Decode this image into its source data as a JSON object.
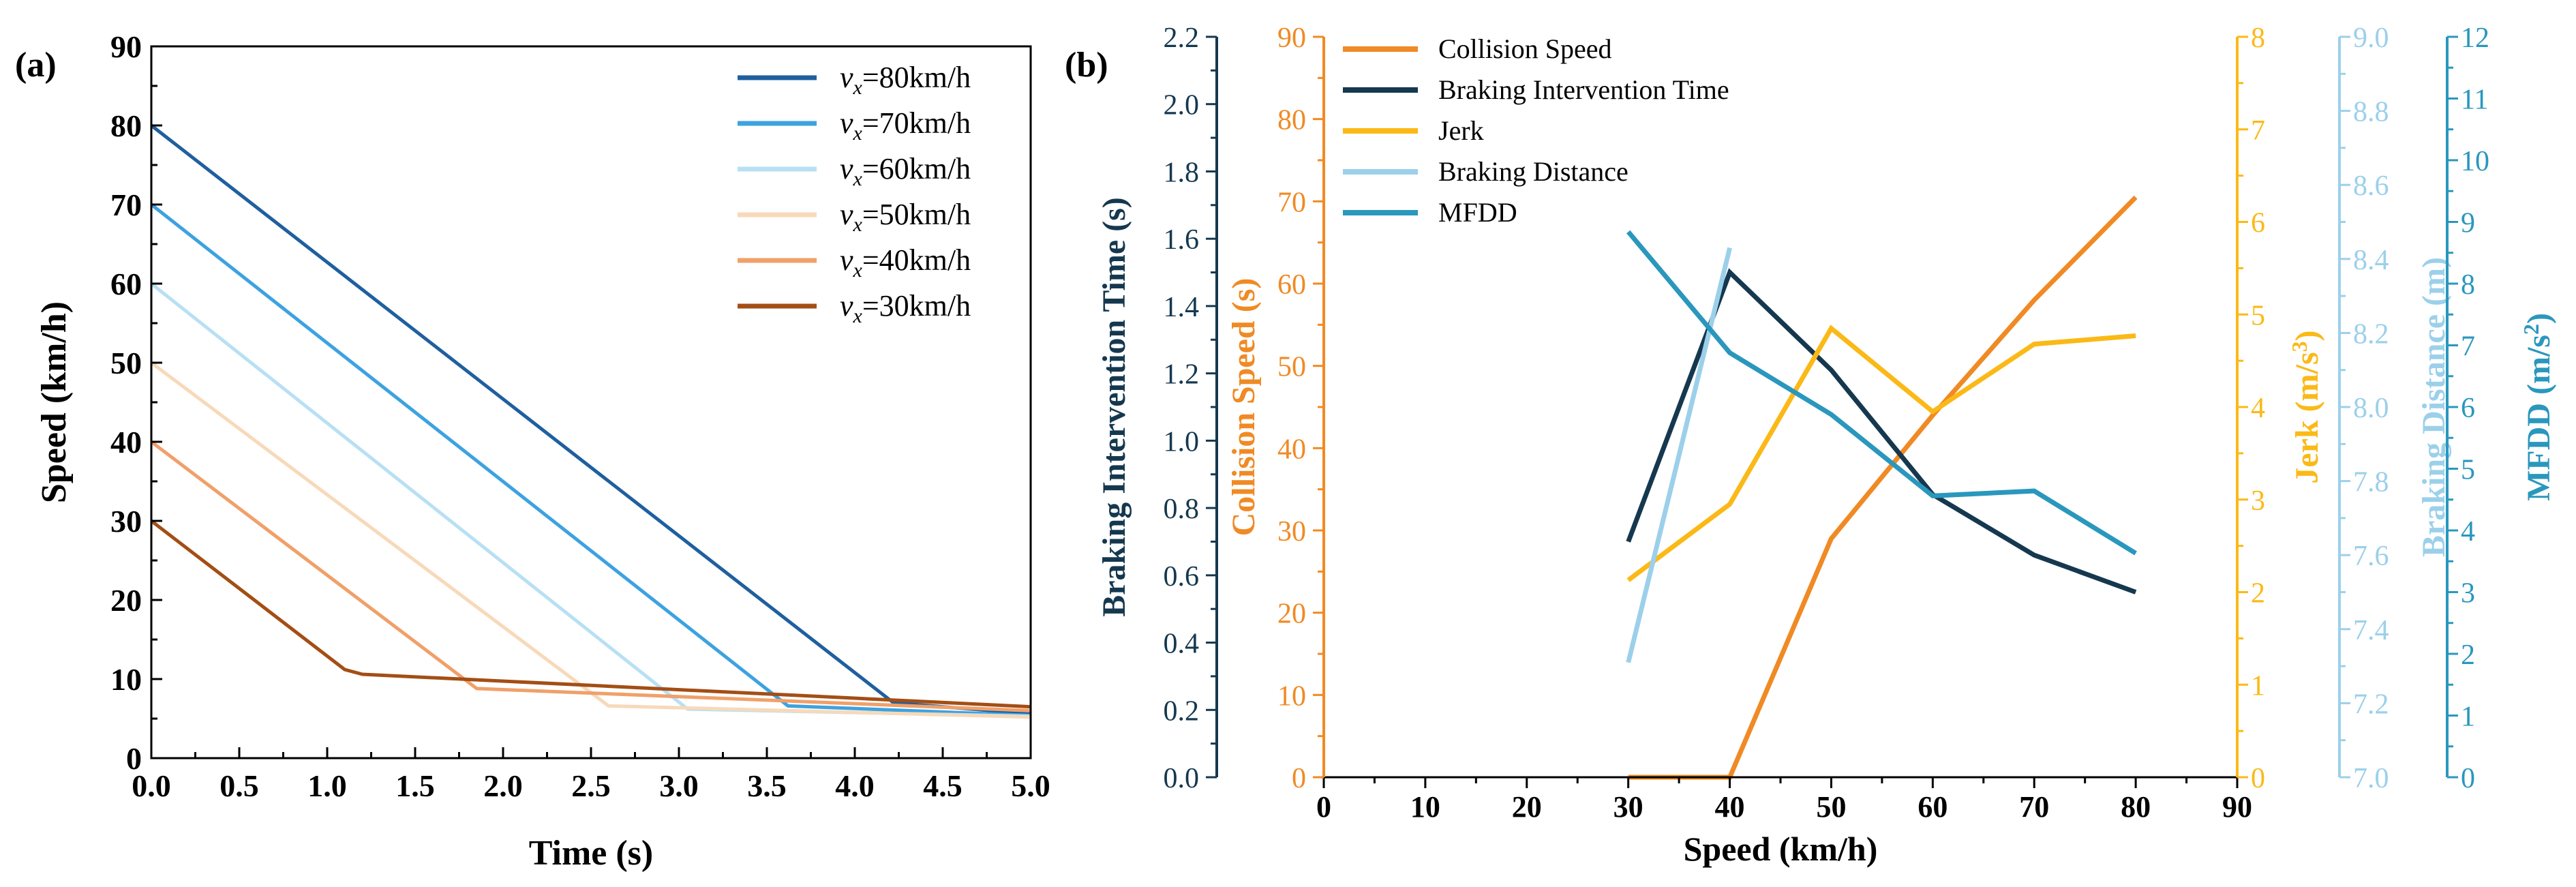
{
  "panel_a_label": "(a)",
  "panel_b_label": "(b)",
  "chart_data": [
    {
      "type": "line",
      "panel": "(a)",
      "title": "",
      "xlabel": "Time (s)",
      "ylabel": "Speed (km/h)",
      "xlim": [
        0,
        5
      ],
      "ylim": [
        0,
        90
      ],
      "xticks": [
        "0.0",
        "0.5",
        "1.0",
        "1.5",
        "2.0",
        "2.5",
        "3.0",
        "3.5",
        "4.0",
        "4.5",
        "5.0"
      ],
      "yticks": [
        "0",
        "10",
        "20",
        "30",
        "40",
        "50",
        "60",
        "70",
        "80",
        "90"
      ],
      "grid": false,
      "legend_position": "top-right",
      "series": [
        {
          "name": "v_x=80km/h",
          "var": "v",
          "sub": "x",
          "value": "=80km/h",
          "color": "#1f5f9e",
          "points": [
            [
              0,
              80
            ],
            [
              4.22,
              7.0
            ],
            [
              5.0,
              5.6
            ]
          ]
        },
        {
          "name": "v_x=70km/h",
          "var": "v",
          "sub": "x",
          "value": "=70km/h",
          "color": "#3da2e0",
          "points": [
            [
              0,
              70
            ],
            [
              3.62,
              6.6
            ],
            [
              5.0,
              5.4
            ]
          ]
        },
        {
          "name": "v_x=60km/h",
          "var": "v",
          "sub": "x",
          "value": "=60km/h",
          "color": "#b8e0f4",
          "points": [
            [
              0,
              60
            ],
            [
              3.05,
              6.2
            ],
            [
              5.0,
              5.3
            ]
          ]
        },
        {
          "name": "v_x=50km/h",
          "var": "v",
          "sub": "x",
          "value": "=50km/h",
          "color": "#f7d9b9",
          "points": [
            [
              0,
              50
            ],
            [
              2.6,
              6.6
            ],
            [
              5.0,
              5.2
            ]
          ]
        },
        {
          "name": "v_x=40km/h",
          "var": "v",
          "sub": "x",
          "value": "=40km/h",
          "color": "#f0a06a",
          "points": [
            [
              0,
              40
            ],
            [
              1.85,
              8.8
            ],
            [
              5.0,
              6.0
            ]
          ]
        },
        {
          "name": "v_x=30km/h",
          "var": "v",
          "sub": "x",
          "value": "=30km/h",
          "color": "#a34e15",
          "points": [
            [
              0,
              30
            ],
            [
              1.1,
              11.2
            ],
            [
              1.2,
              10.6
            ],
            [
              5.0,
              6.5
            ]
          ]
        }
      ]
    },
    {
      "type": "line",
      "panel": "(b)",
      "title": "",
      "xlabel": "Speed (km/h)",
      "xlim": [
        0,
        90
      ],
      "xticks": [
        "0",
        "10",
        "20",
        "30",
        "40",
        "50",
        "60",
        "70",
        "80",
        "90"
      ],
      "grid": false,
      "legend_position": "top-left",
      "axes": {
        "braking_time": {
          "label": "Braking Intervention Time (s)",
          "color": "#15384f",
          "ylim": [
            0,
            2.2
          ],
          "ticks": [
            "0.0",
            "0.2",
            "0.4",
            "0.6",
            "0.8",
            "1.0",
            "1.2",
            "1.4",
            "1.6",
            "1.8",
            "2.0",
            "2.2"
          ]
        },
        "collision": {
          "label": "Collision Speed (s)",
          "color": "#f08a24",
          "ylim": [
            0,
            90
          ],
          "ticks": [
            "0",
            "10",
            "20",
            "30",
            "40",
            "50",
            "60",
            "70",
            "80",
            "90"
          ]
        },
        "jerk": {
          "label_main": "Jerk (m/s",
          "label_sup": "3",
          "label_end": ")",
          "color": "#fbb917",
          "ylim": [
            0,
            8
          ],
          "ticks": [
            "0",
            "1",
            "2",
            "3",
            "4",
            "5",
            "6",
            "7",
            "8"
          ]
        },
        "distance": {
          "label": "Braking Distance (m)",
          "color": "#9cd0ea",
          "ylim": [
            7.0,
            9.0
          ],
          "ticks": [
            "7.0",
            "7.2",
            "7.4",
            "7.6",
            "7.8",
            "8.0",
            "8.2",
            "8.4",
            "8.6",
            "8.8",
            "9.0"
          ]
        },
        "mfdd": {
          "label_main": "MFDD (m/s",
          "label_sup": "2",
          "label_end": ")",
          "color": "#2a97bd",
          "ylim": [
            0,
            12
          ],
          "ticks": [
            "0",
            "1",
            "2",
            "3",
            "4",
            "5",
            "6",
            "7",
            "8",
            "9",
            "10",
            "11",
            "12"
          ]
        }
      },
      "series": [
        {
          "name": "Collision Speed",
          "axis": "collision",
          "color": "#f08a24",
          "x": [
            30,
            40,
            50,
            60,
            70,
            80
          ],
          "values": [
            0,
            0,
            29,
            44,
            58,
            70.5
          ]
        },
        {
          "name": "Braking Intervention Time",
          "axis": "braking_time",
          "color": "#15384f",
          "x": [
            30,
            40,
            50,
            60,
            70,
            80
          ],
          "values": [
            0.7,
            1.5,
            1.21,
            0.84,
            0.66,
            0.55
          ]
        },
        {
          "name": "Jerk",
          "axis": "jerk",
          "color": "#fbb917",
          "x": [
            30,
            40,
            50,
            60,
            70,
            80
          ],
          "values": [
            2.13,
            2.95,
            4.85,
            3.95,
            4.68,
            4.77
          ]
        },
        {
          "name": "Braking Distance",
          "axis": "distance",
          "color": "#9cd0ea",
          "x": [
            30,
            40
          ],
          "values": [
            7.31,
            8.43
          ]
        },
        {
          "name": "MFDD",
          "axis": "mfdd",
          "color": "#2a97bd",
          "x": [
            30,
            40,
            50,
            60,
            70,
            80
          ],
          "values": [
            8.84,
            6.88,
            5.88,
            4.56,
            4.64,
            3.63
          ]
        }
      ]
    }
  ]
}
